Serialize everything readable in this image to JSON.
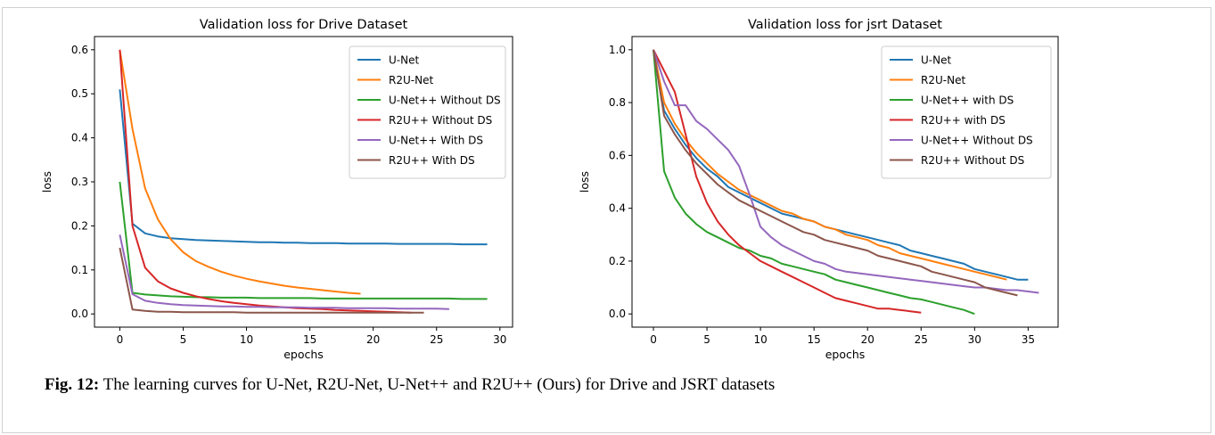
{
  "caption": {
    "label": "Fig. 12:",
    "text": " The learning curves for U-Net, R2U-Net, U-Net++ and R2U++ (Ours) for Drive and JSRT datasets"
  },
  "chart_data": [
    {
      "type": "line",
      "title": "Validation loss for Drive Dataset",
      "xlabel": "epochs",
      "ylabel": "loss",
      "xlim": [
        -2,
        31
      ],
      "ylim": [
        -0.03,
        0.63
      ],
      "xticks": [
        0,
        5,
        10,
        15,
        20,
        25,
        30
      ],
      "yticks": [
        0.0,
        0.1,
        0.2,
        0.3,
        0.4,
        0.5,
        0.6
      ],
      "ytick_labels": [
        "0.0",
        "0.1",
        "0.2",
        "0.3",
        "0.4",
        "0.5",
        "0.6"
      ],
      "legend_position": "top-right",
      "series": [
        {
          "name": "U-Net",
          "color": "#1f77b4",
          "x": [
            0,
            1,
            2,
            3,
            4,
            5,
            6,
            7,
            8,
            9,
            10,
            11,
            12,
            13,
            14,
            15,
            16,
            17,
            18,
            19,
            20,
            21,
            22,
            23,
            24,
            25,
            26,
            27,
            28,
            29
          ],
          "y": [
            0.51,
            0.205,
            0.183,
            0.176,
            0.172,
            0.17,
            0.168,
            0.167,
            0.166,
            0.165,
            0.164,
            0.163,
            0.163,
            0.162,
            0.162,
            0.161,
            0.161,
            0.161,
            0.16,
            0.16,
            0.16,
            0.16,
            0.159,
            0.159,
            0.159,
            0.159,
            0.159,
            0.158,
            0.158,
            0.158
          ]
        },
        {
          "name": "R2U-Net",
          "color": "#ff7f0e",
          "x": [
            0,
            1,
            2,
            3,
            4,
            5,
            6,
            7,
            8,
            9,
            10,
            11,
            12,
            13,
            14,
            15,
            16,
            17,
            18,
            19
          ],
          "y": [
            0.6,
            0.42,
            0.285,
            0.215,
            0.17,
            0.14,
            0.12,
            0.107,
            0.096,
            0.087,
            0.08,
            0.074,
            0.069,
            0.064,
            0.06,
            0.057,
            0.054,
            0.051,
            0.048,
            0.046
          ]
        },
        {
          "name": "U-Net++ Without DS",
          "color": "#2ca02c",
          "x": [
            0,
            1,
            2,
            3,
            4,
            5,
            6,
            7,
            8,
            9,
            10,
            11,
            12,
            13,
            14,
            15,
            16,
            17,
            18,
            19,
            20,
            21,
            22,
            23,
            24,
            25,
            26,
            27,
            28,
            29
          ],
          "y": [
            0.3,
            0.048,
            0.044,
            0.042,
            0.04,
            0.039,
            0.038,
            0.038,
            0.037,
            0.037,
            0.037,
            0.036,
            0.036,
            0.036,
            0.036,
            0.036,
            0.035,
            0.035,
            0.035,
            0.035,
            0.035,
            0.035,
            0.035,
            0.035,
            0.035,
            0.035,
            0.035,
            0.034,
            0.034,
            0.034
          ]
        },
        {
          "name": "R2U++ Without DS",
          "color": "#d62728",
          "x": [
            0,
            1,
            2,
            3,
            4,
            5,
            6,
            7,
            8,
            9,
            10,
            11,
            12,
            13,
            14,
            15,
            16,
            17,
            18,
            19,
            20,
            21,
            22,
            23
          ],
          "y": [
            0.6,
            0.2,
            0.105,
            0.074,
            0.058,
            0.048,
            0.04,
            0.034,
            0.029,
            0.025,
            0.022,
            0.019,
            0.017,
            0.015,
            0.013,
            0.012,
            0.011,
            0.009,
            0.008,
            0.007,
            0.006,
            0.005,
            0.004,
            0.003
          ]
        },
        {
          "name": "U-Net++ With DS",
          "color": "#9467bd",
          "x": [
            0,
            1,
            2,
            3,
            4,
            5,
            6,
            7,
            8,
            9,
            10,
            11,
            12,
            13,
            14,
            15,
            16,
            17,
            18,
            19,
            20,
            21,
            22,
            23,
            24,
            25,
            26
          ],
          "y": [
            0.18,
            0.045,
            0.03,
            0.025,
            0.022,
            0.02,
            0.019,
            0.018,
            0.017,
            0.017,
            0.016,
            0.016,
            0.015,
            0.015,
            0.015,
            0.014,
            0.014,
            0.014,
            0.013,
            0.013,
            0.013,
            0.013,
            0.012,
            0.012,
            0.012,
            0.012,
            0.011
          ]
        },
        {
          "name": "R2U++ With DS",
          "color": "#8c564b",
          "x": [
            0,
            1,
            2,
            3,
            4,
            5,
            6,
            7,
            8,
            9,
            10,
            11,
            12,
            13,
            14,
            15,
            16,
            17,
            18,
            19,
            20,
            21,
            22,
            23,
            24
          ],
          "y": [
            0.15,
            0.01,
            0.007,
            0.005,
            0.005,
            0.004,
            0.004,
            0.004,
            0.004,
            0.004,
            0.003,
            0.003,
            0.003,
            0.003,
            0.003,
            0.003,
            0.003,
            0.003,
            0.003,
            0.003,
            0.003,
            0.003,
            0.003,
            0.003,
            0.003
          ]
        }
      ]
    },
    {
      "type": "line",
      "title": "Validation loss for jsrt Dataset",
      "xlabel": "epochs",
      "ylabel": "loss",
      "xlim": [
        -2,
        37.8
      ],
      "ylim": [
        -0.05,
        1.05
      ],
      "xticks": [
        0,
        5,
        10,
        15,
        20,
        25,
        30,
        35
      ],
      "yticks": [
        0.0,
        0.2,
        0.4,
        0.6,
        0.8,
        1.0
      ],
      "ytick_labels": [
        "0.0",
        "0.2",
        "0.4",
        "0.6",
        "0.8",
        "1.0"
      ],
      "legend_position": "top-right",
      "series": [
        {
          "name": "U-Net",
          "color": "#1f77b4",
          "x": [
            0,
            1,
            2,
            3,
            4,
            5,
            6,
            7,
            8,
            9,
            10,
            11,
            12,
            13,
            14,
            15,
            16,
            17,
            18,
            19,
            20,
            21,
            22,
            23,
            24,
            25,
            26,
            27,
            28,
            29,
            30,
            31,
            32,
            33,
            34,
            35
          ],
          "y": [
            1.0,
            0.77,
            0.7,
            0.64,
            0.59,
            0.55,
            0.52,
            0.48,
            0.46,
            0.44,
            0.42,
            0.4,
            0.38,
            0.37,
            0.36,
            0.35,
            0.33,
            0.32,
            0.31,
            0.3,
            0.29,
            0.28,
            0.27,
            0.26,
            0.24,
            0.23,
            0.22,
            0.21,
            0.2,
            0.19,
            0.17,
            0.16,
            0.15,
            0.14,
            0.13,
            0.13
          ]
        },
        {
          "name": "R2U-Net",
          "color": "#ff7f0e",
          "x": [
            0,
            1,
            2,
            3,
            4,
            5,
            6,
            7,
            8,
            9,
            10,
            11,
            12,
            13,
            14,
            15,
            16,
            17,
            18,
            19,
            20,
            21,
            22,
            23,
            24,
            25,
            26,
            27,
            28,
            29,
            30,
            31,
            32,
            33
          ],
          "y": [
            1.0,
            0.8,
            0.72,
            0.66,
            0.61,
            0.57,
            0.53,
            0.5,
            0.47,
            0.45,
            0.43,
            0.41,
            0.39,
            0.38,
            0.36,
            0.35,
            0.33,
            0.32,
            0.3,
            0.29,
            0.28,
            0.26,
            0.25,
            0.23,
            0.22,
            0.21,
            0.2,
            0.19,
            0.18,
            0.17,
            0.16,
            0.15,
            0.14,
            0.13
          ]
        },
        {
          "name": "U-Net++ with DS",
          "color": "#2ca02c",
          "x": [
            0,
            1,
            2,
            3,
            4,
            5,
            6,
            7,
            8,
            9,
            10,
            11,
            12,
            13,
            14,
            15,
            16,
            17,
            18,
            19,
            20,
            21,
            22,
            23,
            24,
            25,
            26,
            27,
            28,
            29,
            30
          ],
          "y": [
            1.0,
            0.54,
            0.44,
            0.38,
            0.34,
            0.31,
            0.29,
            0.27,
            0.25,
            0.24,
            0.22,
            0.21,
            0.19,
            0.18,
            0.17,
            0.16,
            0.15,
            0.13,
            0.12,
            0.11,
            0.1,
            0.09,
            0.08,
            0.07,
            0.06,
            0.055,
            0.045,
            0.035,
            0.025,
            0.015,
            0.0
          ]
        },
        {
          "name": "R2U++ with DS",
          "color": "#d62728",
          "x": [
            0,
            1,
            2,
            3,
            4,
            5,
            6,
            7,
            8,
            9,
            10,
            11,
            12,
            13,
            14,
            15,
            16,
            17,
            18,
            19,
            20,
            21,
            22,
            23,
            24,
            25
          ],
          "y": [
            1.0,
            0.92,
            0.84,
            0.68,
            0.52,
            0.42,
            0.35,
            0.3,
            0.26,
            0.23,
            0.2,
            0.18,
            0.16,
            0.14,
            0.12,
            0.1,
            0.08,
            0.06,
            0.05,
            0.04,
            0.03,
            0.02,
            0.02,
            0.015,
            0.01,
            0.005
          ]
        },
        {
          "name": "U-Net++ Without DS",
          "color": "#9467bd",
          "x": [
            0,
            1,
            2,
            3,
            4,
            5,
            6,
            7,
            8,
            9,
            10,
            11,
            12,
            13,
            14,
            15,
            16,
            17,
            18,
            19,
            20,
            21,
            22,
            23,
            24,
            25,
            26,
            27,
            28,
            29,
            30,
            31,
            32,
            33,
            34,
            35,
            36
          ],
          "y": [
            1.0,
            0.88,
            0.79,
            0.79,
            0.73,
            0.7,
            0.66,
            0.62,
            0.56,
            0.45,
            0.33,
            0.29,
            0.26,
            0.24,
            0.22,
            0.2,
            0.19,
            0.17,
            0.16,
            0.155,
            0.15,
            0.145,
            0.14,
            0.135,
            0.13,
            0.125,
            0.12,
            0.115,
            0.11,
            0.105,
            0.1,
            0.1,
            0.095,
            0.09,
            0.09,
            0.085,
            0.08
          ]
        },
        {
          "name": "R2U++ Without DS",
          "color": "#8c564b",
          "x": [
            0,
            1,
            2,
            3,
            4,
            5,
            6,
            7,
            8,
            9,
            10,
            11,
            12,
            13,
            14,
            15,
            16,
            17,
            18,
            19,
            20,
            21,
            22,
            23,
            24,
            25,
            26,
            27,
            28,
            29,
            30,
            31,
            32,
            33,
            34
          ],
          "y": [
            1.0,
            0.75,
            0.68,
            0.62,
            0.57,
            0.53,
            0.49,
            0.46,
            0.43,
            0.41,
            0.39,
            0.37,
            0.35,
            0.33,
            0.31,
            0.3,
            0.28,
            0.27,
            0.26,
            0.25,
            0.24,
            0.22,
            0.21,
            0.2,
            0.19,
            0.18,
            0.16,
            0.15,
            0.14,
            0.13,
            0.12,
            0.1,
            0.09,
            0.08,
            0.07
          ]
        }
      ]
    }
  ]
}
